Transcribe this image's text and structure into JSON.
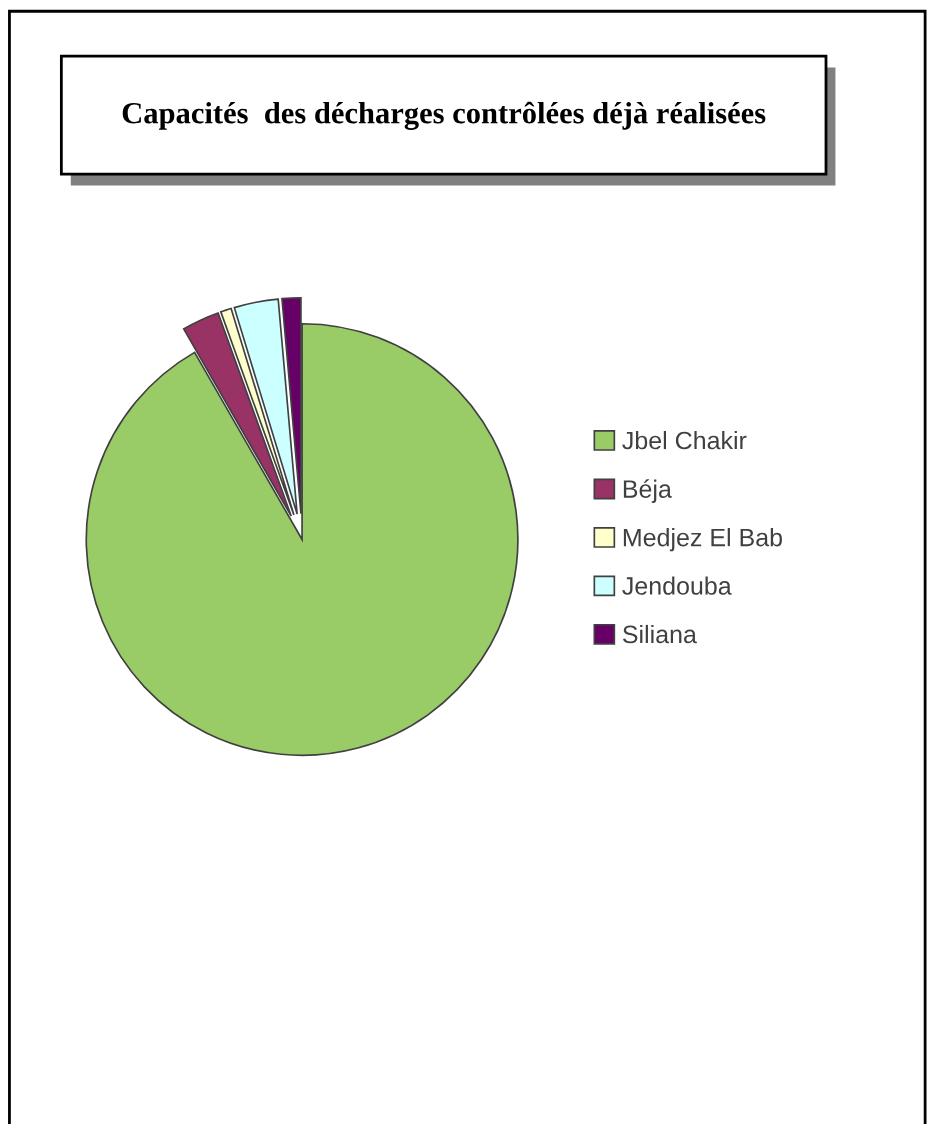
{
  "chart_data": {
    "type": "pie",
    "title": "Capacités  des décharges contrôlées déjà réalisées",
    "categories": [
      "Jbel Chakir",
      "Béja",
      "Medjez El Bab",
      "Jendouba",
      "Siliana"
    ],
    "values": [
      91.7,
      2.8,
      0.8,
      3.3,
      1.4
    ],
    "colors": [
      "#99cc66",
      "#993366",
      "#ffffcc",
      "#ccffff",
      "#660066"
    ],
    "legend": "right"
  }
}
